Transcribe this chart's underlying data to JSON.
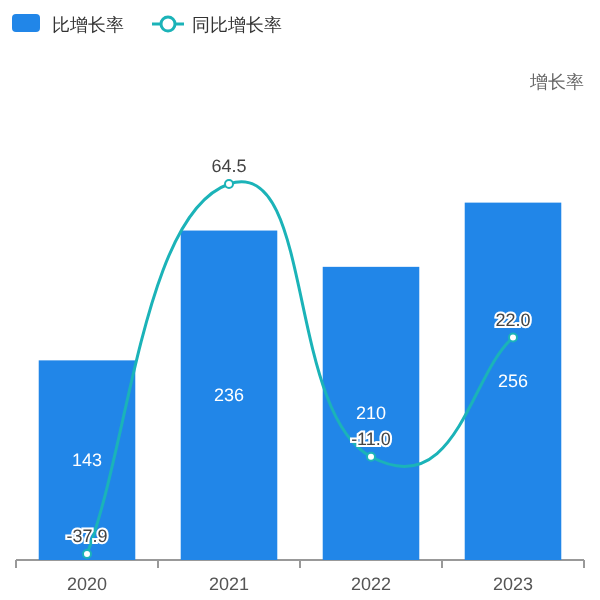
{
  "chart_data": {
    "type": "bar",
    "categories": [
      "2020",
      "2021",
      "2022",
      "2023"
    ],
    "annotations": [
      "增长率"
    ],
    "legend": "top left",
    "data_labels": true,
    "series": [
      {
        "name": "比增长率",
        "color": "#2186e8",
        "values": [
          143,
          236,
          210,
          256
        ]
      },
      {
        "name": "同比增长率",
        "type": "line",
        "axis": "y2",
        "color": "#1bb3b8",
        "marker": "circle",
        "values": [
          -37.9,
          64.5,
          -11.0,
          22.0
        ],
        "value_labels": [
          "-37.9",
          "64.5",
          "-11.0",
          "22.0"
        ]
      }
    ]
  }
}
